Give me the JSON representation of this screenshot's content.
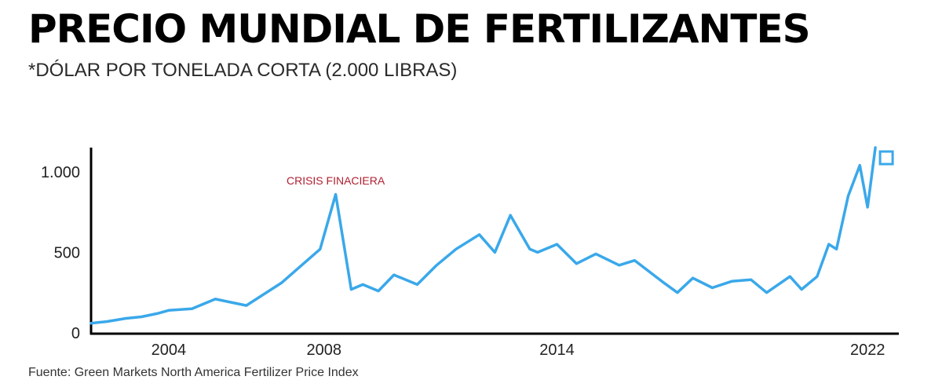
{
  "title": "PRECIO MUNDIAL DE FERTILIZANTES",
  "subtitle": "*DÓLAR POR TONELADA CORTA (2.000 LIBRAS)",
  "source": "Fuente: Green Markets North America Fertilizer Price Index",
  "colors": {
    "line": "#3aa8ea",
    "axis": "#000000",
    "annotation": "#b02030"
  },
  "chart_data": {
    "type": "line",
    "xlabel": "",
    "ylabel": "",
    "xlim": [
      2002.0,
      2022.4
    ],
    "ylim": [
      0,
      1150
    ],
    "x_ticks": [
      2004,
      2008,
      2014,
      2022
    ],
    "x_tick_labels": [
      "2004",
      "2008",
      "2014",
      "2022"
    ],
    "y_ticks": [
      0,
      500,
      1000
    ],
    "y_tick_labels": [
      "0",
      "500",
      "1.000"
    ],
    "grid": false,
    "legend": "none",
    "annotation": {
      "text": "CRISIS FINACIERA",
      "x": 2008.3,
      "y": 920
    },
    "series": [
      {
        "color": "#3aa8ea",
        "x": [
          2002.0,
          2002.4,
          2002.9,
          2003.3,
          2003.7,
          2004.0,
          2004.6,
          2005.2,
          2006.0,
          2006.9,
          2007.9,
          2008.3,
          2008.7,
          2009.0,
          2009.4,
          2009.8,
          2010.4,
          2010.9,
          2011.4,
          2012.0,
          2012.4,
          2012.8,
          2013.3,
          2013.5,
          2014.0,
          2014.5,
          2015.0,
          2015.6,
          2016.0,
          2016.7,
          2017.1,
          2017.5,
          2018.0,
          2018.5,
          2019.0,
          2019.4,
          2020.0,
          2020.3,
          2020.7,
          2021.0,
          2021.2,
          2021.5,
          2021.8,
          2022.0,
          2022.2
        ],
        "values": [
          60,
          70,
          90,
          100,
          120,
          140,
          150,
          210,
          170,
          310,
          520,
          860,
          270,
          300,
          260,
          360,
          300,
          420,
          520,
          610,
          500,
          730,
          520,
          500,
          550,
          430,
          490,
          420,
          450,
          320,
          250,
          340,
          280,
          320,
          330,
          250,
          350,
          270,
          350,
          550,
          520,
          850,
          1040,
          780,
          1150
        ]
      }
    ]
  }
}
